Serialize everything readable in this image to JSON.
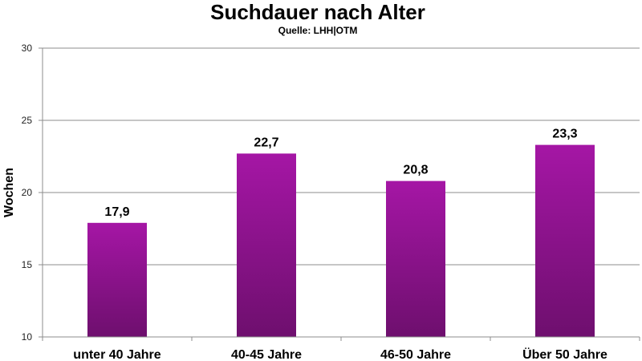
{
  "chart_data": {
    "type": "bar",
    "title": "Suchdauer nach Alter",
    "subtitle": "Quelle: LHH|OTM",
    "ylabel": "Wochen",
    "xlabel": "",
    "ylim": [
      10,
      30
    ],
    "yticks": [
      10,
      15,
      20,
      25,
      30
    ],
    "categories": [
      "unter 40 Jahre",
      "40-45 Jahre",
      "46-50 Jahre",
      "Über 50 Jahre"
    ],
    "values": [
      17.9,
      22.7,
      20.8,
      23.3
    ],
    "value_labels": [
      "17,9",
      "22,7",
      "20,8",
      "23,3"
    ],
    "grid": true,
    "legend": "none",
    "colors": {
      "bar_top": "#a516a5",
      "bar_bottom": "#6e0f6e"
    }
  }
}
